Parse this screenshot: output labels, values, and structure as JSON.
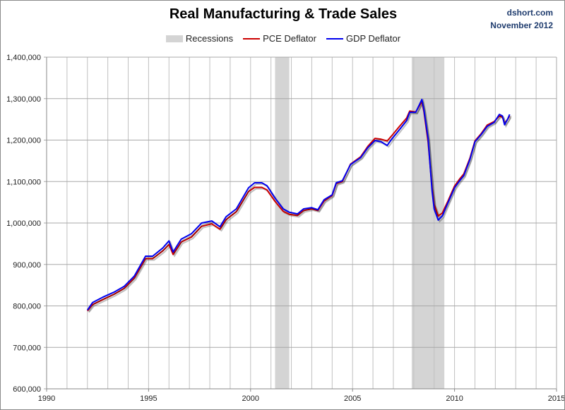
{
  "chart_data": {
    "type": "line",
    "title": "Real Manufacturing & Trade Sales",
    "source": "dshort.com",
    "date": "November 2012",
    "xlabel": "",
    "ylabel": "",
    "xlim": [
      1990,
      2015
    ],
    "ylim": [
      600000,
      1400000
    ],
    "xticks": [
      1990,
      1995,
      2000,
      2005,
      2010,
      2015
    ],
    "yticks": [
      600000,
      700000,
      800000,
      900000,
      1000000,
      1100000,
      1200000,
      1300000,
      1400000
    ],
    "ytick_labels": [
      "600,000",
      "700,000",
      "800,000",
      "900,000",
      "1,000,000",
      "1,100,000",
      "1,200,000",
      "1,300,000",
      "1,400,000"
    ],
    "grid": true,
    "legend_position": "top-center",
    "recessions": [
      {
        "start": 2001.2,
        "end": 2001.9
      },
      {
        "start": 2007.9,
        "end": 2009.5
      }
    ],
    "legend": [
      "Recessions",
      "PCE Deflator",
      "GDP Deflator"
    ],
    "colors": {
      "recession": "#d4d4d4",
      "pce": "#cc0000",
      "gdp": "#0000ee"
    },
    "x": [
      1992.0,
      1992.25,
      1992.75,
      1993.3,
      1993.8,
      1994.3,
      1994.85,
      1995.2,
      1995.7,
      1996.0,
      1996.2,
      1996.6,
      1997.1,
      1997.6,
      1998.1,
      1998.5,
      1998.8,
      1999.3,
      1999.9,
      2000.2,
      2000.55,
      2000.8,
      2001.2,
      2001.6,
      2001.9,
      2002.3,
      2002.6,
      2003.0,
      2003.3,
      2003.6,
      2004.0,
      2004.2,
      2004.5,
      2004.9,
      2005.4,
      2005.75,
      2006.1,
      2006.4,
      2006.7,
      2006.95,
      2007.3,
      2007.65,
      2007.8,
      2008.1,
      2008.4,
      2008.5,
      2008.7,
      2008.9,
      2009.0,
      2009.2,
      2009.4,
      2009.65,
      2010.0,
      2010.25,
      2010.45,
      2010.75,
      2011.0,
      2011.3,
      2011.6,
      2011.95,
      2012.2,
      2012.35,
      2012.45,
      2012.6,
      2012.7
    ],
    "series": [
      {
        "name": "PCE Deflator",
        "values": [
          788000,
          803000,
          815000,
          828000,
          842000,
          867000,
          914000,
          914000,
          933000,
          948000,
          924000,
          954000,
          966000,
          992000,
          998000,
          985000,
          1008000,
          1027000,
          1076000,
          1086000,
          1086000,
          1080000,
          1052000,
          1028000,
          1021000,
          1018000,
          1030000,
          1034000,
          1030000,
          1053000,
          1066000,
          1095000,
          1100000,
          1142000,
          1160000,
          1185000,
          1204000,
          1202000,
          1198000,
          1212000,
          1233000,
          1253000,
          1270000,
          1268000,
          1293000,
          1268000,
          1196000,
          1085000,
          1045000,
          1017000,
          1024000,
          1050000,
          1089000,
          1106000,
          1118000,
          1156000,
          1198000,
          1215000,
          1236000,
          1245000,
          1258000,
          1255000,
          1240000,
          1250000,
          1258000
        ]
      },
      {
        "name": "GDP Deflator",
        "values": [
          790000,
          808000,
          821000,
          833000,
          847000,
          872000,
          920000,
          920000,
          940000,
          957000,
          930000,
          961000,
          974000,
          1000000,
          1005000,
          991000,
          1015000,
          1034000,
          1085000,
          1097000,
          1097000,
          1090000,
          1060000,
          1034000,
          1026000,
          1022000,
          1034000,
          1037000,
          1032000,
          1056000,
          1068000,
          1097000,
          1102000,
          1141000,
          1158000,
          1182000,
          1199000,
          1196000,
          1187000,
          1204000,
          1225000,
          1247000,
          1267000,
          1267000,
          1298000,
          1272000,
          1204000,
          1077000,
          1034000,
          1007000,
          1017000,
          1046000,
          1085000,
          1102000,
          1114000,
          1153000,
          1196000,
          1213000,
          1233000,
          1243000,
          1262000,
          1258000,
          1237000,
          1250000,
          1262000
        ]
      }
    ]
  }
}
